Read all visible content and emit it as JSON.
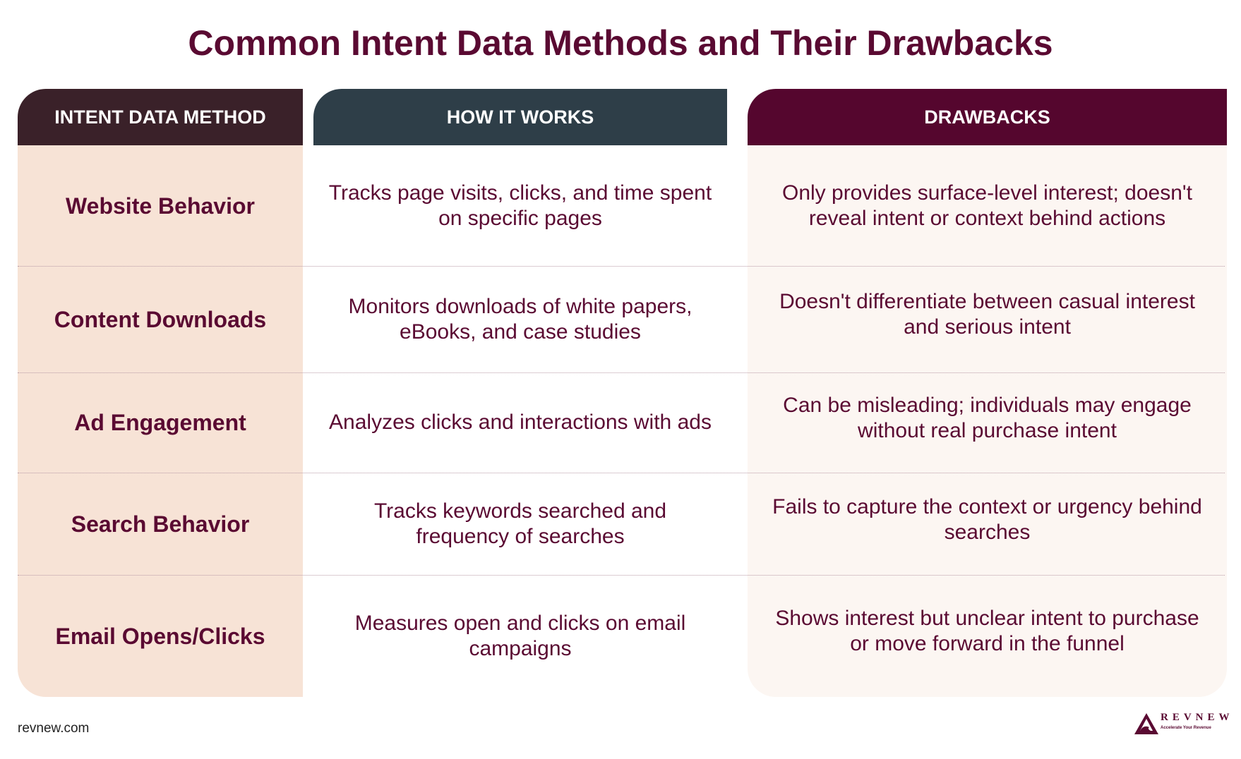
{
  "title": "Common Intent Data Methods and Their Drawbacks",
  "headers": {
    "method": "INTENT DATA METHOD",
    "how": "HOW IT WORKS",
    "drawbacks": "DRAWBACKS"
  },
  "rows": [
    {
      "method": "Website Behavior",
      "how": "Tracks page visits, clicks, and time spent on specific pages",
      "drawbacks": "Only provides surface-level interest; doesn't reveal intent or context behind actions"
    },
    {
      "method": "Content Downloads",
      "how": "Monitors downloads of white papers, eBooks, and case studies",
      "drawbacks": "Doesn't differentiate between casual interest and serious intent"
    },
    {
      "method": "Ad Engagement",
      "how": "Analyzes clicks and interactions with ads",
      "drawbacks": "Can be misleading; individuals may engage without real purchase intent"
    },
    {
      "method": "Search Behavior",
      "how": "Tracks keywords searched and frequency of searches",
      "drawbacks": "Fails to capture the context or urgency behind searches"
    },
    {
      "method": "Email Opens/Clicks",
      "how": "Measures open and clicks on email campaigns",
      "drawbacks": "Shows interest but unclear intent to purchase or move forward in the funnel"
    }
  ],
  "footer": {
    "site": "revnew.com",
    "logo_name": "REVNEW",
    "logo_tagline": "Accelerate Your Revenue"
  },
  "colors": {
    "text": "#5a0a32",
    "header_method": "#3a2129",
    "header_how": "#2e3e48",
    "header_drawbacks": "#55062e",
    "method_bg": "#f7e3d6",
    "drawbacks_bg": "#fcf6f2"
  }
}
